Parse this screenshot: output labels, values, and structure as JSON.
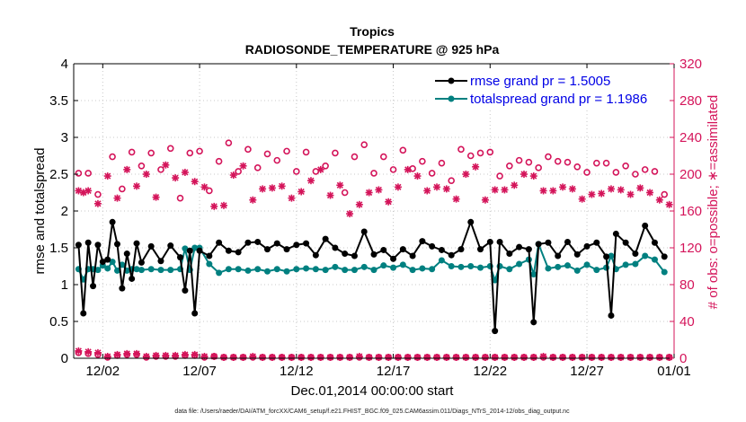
{
  "chart_data": {
    "type": "line",
    "title": "Tropics",
    "subtitle": "RADIOSONDE_TEMPERATURE @ 925 hPa",
    "xlabel": "Dec.01,2014 00:00:00 start",
    "ylabel": "rmse and totalspread",
    "ylabel_right": "# of obs: o=possible; ∗=assimilated",
    "footer": "data file: /Users/raeder/DAI/ATM_forcXX/CAM6_setup/f.e21.FHIST_BGC.f09_025.CAM6assim.011/Diags_NTrS_2014-12/obs_diag_output.nc",
    "xlim": [
      0.5,
      31.5
    ],
    "ylim": [
      0,
      4
    ],
    "ylim_right": [
      0,
      320
    ],
    "x_ticks": [
      {
        "x": 2,
        "label": "12/02"
      },
      {
        "x": 7,
        "label": "12/07"
      },
      {
        "x": 12,
        "label": "12/12"
      },
      {
        "x": 17,
        "label": "12/17"
      },
      {
        "x": 22,
        "label": "12/22"
      },
      {
        "x": 27,
        "label": "12/27"
      },
      {
        "x": 32,
        "label": "01/01"
      }
    ],
    "y_ticks": [
      "0",
      "0.5",
      "1",
      "1.5",
      "2",
      "2.5",
      "3",
      "3.5",
      "4"
    ],
    "y_ticks_right": [
      "0",
      "40",
      "80",
      "120",
      "160",
      "200",
      "240",
      "280",
      "320"
    ],
    "colors": {
      "rmse": "#000000",
      "spread": "#008080",
      "obs": "#d4145a",
      "axis_right": "#d4145a",
      "legend_text": "#0000e6"
    },
    "series": [
      {
        "name": "rmse grand pr = 1.5005",
        "key": "rmse",
        "x": [
          0.75,
          1.0,
          1.25,
          1.5,
          1.75,
          2.0,
          2.25,
          2.5,
          2.75,
          3.0,
          3.25,
          3.5,
          3.75,
          4.0,
          4.5,
          5.0,
          5.5,
          6.0,
          6.25,
          6.5,
          6.75,
          7.0,
          7.5,
          8.0,
          8.5,
          9.0,
          9.5,
          10.0,
          10.5,
          11.0,
          11.5,
          12.0,
          12.5,
          13.0,
          13.5,
          14.0,
          14.5,
          15.0,
          15.5,
          16.0,
          16.5,
          17.0,
          17.5,
          18.0,
          18.5,
          19.0,
          19.5,
          20.0,
          20.5,
          21.0,
          21.5,
          22.0,
          22.25,
          22.5,
          23.0,
          23.5,
          24.0,
          24.25,
          24.5,
          25.0,
          25.5,
          26.0,
          26.5,
          27.0,
          27.5,
          28.0,
          28.25,
          28.5,
          29.0,
          29.5,
          30.0,
          30.5,
          31.0
        ],
        "values": [
          1.54,
          0.61,
          1.57,
          0.98,
          1.54,
          1.31,
          1.34,
          1.85,
          1.55,
          0.95,
          1.42,
          1.08,
          1.56,
          1.3,
          1.52,
          1.32,
          1.53,
          1.37,
          0.92,
          1.46,
          0.61,
          1.46,
          1.39,
          1.57,
          1.46,
          1.44,
          1.57,
          1.58,
          1.48,
          1.56,
          1.48,
          1.54,
          1.56,
          1.4,
          1.62,
          1.5,
          1.42,
          1.39,
          1.72,
          1.41,
          1.47,
          1.35,
          1.48,
          1.39,
          1.59,
          1.52,
          1.47,
          1.4,
          1.48,
          1.85,
          1.48,
          1.58,
          0.37,
          1.58,
          1.42,
          1.51,
          1.48,
          0.49,
          1.55,
          1.57,
          1.39,
          1.58,
          1.41,
          1.52,
          1.57,
          1.38,
          0.58,
          1.69,
          1.57,
          1.42,
          1.8,
          1.57,
          1.38
        ]
      },
      {
        "name": "totalspread grand pr = 1.1986",
        "key": "spread",
        "x": [
          0.75,
          1.0,
          1.25,
          1.5,
          1.75,
          2.0,
          2.25,
          2.5,
          2.75,
          3.0,
          3.25,
          3.5,
          3.75,
          4.0,
          4.5,
          5.0,
          5.5,
          6.0,
          6.25,
          6.5,
          6.75,
          7.0,
          7.5,
          8.0,
          8.5,
          9.0,
          9.5,
          10.0,
          10.5,
          11.0,
          11.5,
          12.0,
          12.5,
          13.0,
          13.5,
          14.0,
          14.5,
          15.0,
          15.5,
          16.0,
          16.5,
          17.0,
          17.5,
          18.0,
          18.5,
          19.0,
          19.5,
          20.0,
          20.5,
          21.0,
          21.5,
          22.0,
          22.25,
          22.5,
          23.0,
          23.5,
          24.0,
          24.25,
          24.5,
          25.0,
          25.5,
          26.0,
          26.5,
          27.0,
          27.5,
          28.0,
          28.25,
          28.5,
          29.0,
          29.5,
          30.0,
          30.5,
          31.0
        ],
        "values": [
          1.21,
          1.07,
          1.21,
          1.21,
          1.2,
          1.26,
          1.22,
          1.31,
          1.19,
          1.27,
          1.19,
          1.21,
          1.21,
          1.2,
          1.21,
          1.2,
          1.2,
          1.21,
          1.49,
          1.2,
          1.5,
          1.5,
          1.28,
          1.16,
          1.21,
          1.21,
          1.19,
          1.21,
          1.18,
          1.21,
          1.18,
          1.21,
          1.22,
          1.21,
          1.2,
          1.24,
          1.2,
          1.2,
          1.24,
          1.2,
          1.26,
          1.23,
          1.27,
          1.2,
          1.22,
          1.21,
          1.33,
          1.25,
          1.24,
          1.25,
          1.23,
          1.25,
          1.06,
          1.25,
          1.21,
          1.28,
          1.34,
          1.14,
          1.55,
          1.22,
          1.24,
          1.26,
          1.19,
          1.27,
          1.2,
          1.23,
          1.39,
          1.21,
          1.27,
          1.28,
          1.39,
          1.34,
          1.17
        ]
      },
      {
        "name": "obs possible",
        "key": "possible",
        "x": [
          0.75,
          1.25,
          1.75,
          2.5,
          3.0,
          3.5,
          4.0,
          4.5,
          5.0,
          5.5,
          6.0,
          6.5,
          7.0,
          7.5,
          8.0,
          8.5,
          9.0,
          9.5,
          10.0,
          10.5,
          11.0,
          11.5,
          12.0,
          12.5,
          13.0,
          13.5,
          14.0,
          14.5,
          15.0,
          15.5,
          16.0,
          16.5,
          17.0,
          17.5,
          18.0,
          18.5,
          19.0,
          19.5,
          20.0,
          20.5,
          21.0,
          21.5,
          22.0,
          22.5,
          23.0,
          23.5,
          24.0,
          24.5,
          25.0,
          25.5,
          26.0,
          26.5,
          27.0,
          27.5,
          28.0,
          28.5,
          29.0,
          29.5,
          30.0,
          30.5,
          31.0
        ],
        "values": [
          201,
          201,
          178,
          219,
          184,
          224,
          209,
          223,
          205,
          228,
          174,
          223,
          225,
          182,
          214,
          234,
          203,
          227,
          207,
          222,
          215,
          225,
          203,
          224,
          203,
          209,
          223,
          180,
          219,
          232,
          201,
          219,
          205,
          226,
          206,
          214,
          201,
          212,
          193,
          227,
          220,
          223,
          224,
          198,
          209,
          215,
          213,
          207,
          219,
          214,
          213,
          208,
          202,
          212,
          212,
          202,
          209,
          200,
          205,
          203,
          178
        ]
      },
      {
        "name": "obs assimilated",
        "key": "assim",
        "x": [
          0.75,
          1.0,
          1.25,
          1.75,
          2.25,
          2.75,
          3.25,
          3.75,
          4.25,
          4.75,
          5.25,
          5.75,
          6.25,
          6.75,
          7.25,
          7.75,
          8.25,
          8.75,
          9.25,
          9.75,
          10.25,
          10.75,
          11.25,
          11.75,
          12.25,
          12.75,
          13.25,
          13.75,
          14.25,
          14.75,
          15.25,
          15.75,
          16.25,
          16.75,
          17.25,
          17.75,
          18.25,
          18.75,
          19.25,
          19.75,
          20.25,
          20.75,
          21.25,
          21.75,
          22.25,
          22.75,
          23.25,
          23.75,
          24.25,
          24.75,
          25.25,
          25.75,
          26.25,
          26.75,
          27.25,
          27.75,
          28.25,
          28.75,
          29.25,
          29.75,
          30.25,
          30.75,
          31.25
        ],
        "values": [
          182,
          180,
          182,
          168,
          198,
          174,
          205,
          187,
          200,
          175,
          210,
          196,
          202,
          192,
          186,
          165,
          166,
          199,
          209,
          172,
          184,
          185,
          187,
          174,
          181,
          193,
          205,
          177,
          188,
          157,
          167,
          180,
          183,
          170,
          186,
          205,
          198,
          182,
          186,
          184,
          173,
          200,
          208,
          172,
          183,
          183,
          188,
          200,
          198,
          182,
          182,
          186,
          184,
          173,
          178,
          179,
          184,
          183,
          178,
          185,
          180,
          172,
          167
        ]
      },
      {
        "name": "obs possible (bottom)",
        "key": "possible_low",
        "x": [
          0.75,
          1.25,
          1.75,
          2.25,
          2.75,
          3.25,
          3.75,
          4.25,
          4.75,
          5.25,
          5.75,
          6.25,
          6.75,
          7.25,
          7.75,
          8.25,
          8.75,
          9.25,
          9.75,
          10.25,
          10.75,
          11.25,
          11.75,
          12.25,
          12.75,
          13.25,
          13.75,
          14.25,
          14.75,
          15.25,
          15.75,
          16.25,
          16.75,
          17.25,
          17.75,
          18.25,
          18.75,
          19.25,
          19.75,
          20.25,
          20.75,
          21.25,
          21.75,
          22.25,
          22.75,
          23.25,
          23.75,
          24.25,
          24.75,
          25.25,
          25.75,
          26.25,
          26.75,
          27.25,
          27.75,
          28.25,
          28.75,
          29.25,
          29.75,
          30.25,
          30.75,
          31.25
        ],
        "values": [
          6,
          5,
          4,
          1,
          3,
          4,
          4,
          1,
          2,
          2,
          2,
          3,
          3,
          1,
          2,
          1,
          1,
          1,
          1,
          1,
          1,
          1,
          1,
          1,
          1,
          1,
          1,
          1,
          1,
          1,
          1,
          1,
          1,
          1,
          1,
          1,
          1,
          1,
          1,
          1,
          1,
          1,
          1,
          1,
          1,
          1,
          1,
          1,
          1,
          1,
          1,
          1,
          1,
          1,
          1,
          1,
          1,
          1,
          1,
          1,
          1,
          1
        ]
      },
      {
        "name": "obs assimilated (bottom)",
        "key": "assim_low",
        "x": [
          0.75,
          1.25,
          1.75,
          2.25,
          2.75,
          3.25,
          3.75,
          4.25,
          4.75,
          5.25,
          5.75,
          6.25,
          6.75,
          7.25,
          7.75,
          8.25,
          8.75,
          9.25,
          9.75,
          10.25,
          10.75,
          11.25,
          11.75,
          12.25,
          12.75,
          13.25,
          13.75,
          14.25,
          14.75,
          15.25,
          15.75,
          16.25,
          16.75,
          17.25,
          17.75,
          18.25,
          18.75,
          19.25,
          19.75,
          20.25,
          20.75,
          21.25,
          21.75,
          22.25,
          22.75,
          23.25,
          23.75,
          24.25,
          24.75,
          25.25,
          25.75,
          26.25,
          26.75,
          27.25,
          27.75,
          28.25,
          28.75,
          29.25,
          29.75,
          30.25,
          30.75,
          31.25
        ],
        "values": [
          8,
          7,
          6,
          2,
          4,
          5,
          5,
          2,
          3,
          3,
          3,
          4,
          4,
          2,
          2,
          1,
          1,
          1,
          2,
          1,
          1,
          1,
          1,
          1,
          1,
          1,
          1,
          1,
          1,
          2,
          1,
          1,
          1,
          1,
          1,
          1,
          1,
          1,
          1,
          1,
          1,
          1,
          1,
          1,
          1,
          1,
          1,
          1,
          2,
          1,
          1,
          1,
          1,
          1,
          1,
          1,
          1,
          1,
          1,
          1,
          1,
          1
        ]
      }
    ],
    "legend": [
      {
        "label": "rmse grand pr = 1.5005",
        "key": "rmse"
      },
      {
        "label": "totalspread grand pr = 1.1986",
        "key": "spread"
      }
    ],
    "legend_position": "top-right"
  }
}
